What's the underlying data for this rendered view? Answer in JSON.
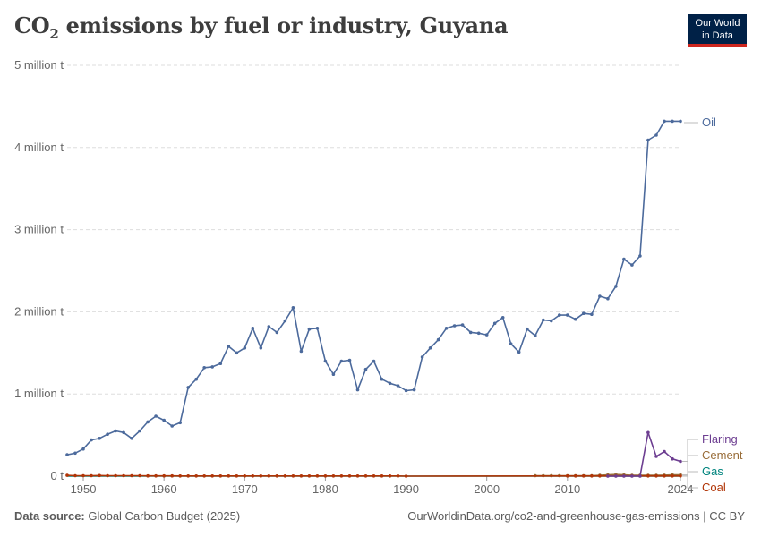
{
  "title_main": "CO",
  "title_sub": "2",
  "title_rest": " emissions by fuel or industry, Guyana",
  "logo": {
    "line1": "Our World",
    "line2": "in Data"
  },
  "footer": {
    "source_label": "Data source:",
    "source_text": " Global Carbon Budget (2025)",
    "right_text": "OurWorldinData.org/co2-and-greenhouse-gas-emissions | CC BY"
  },
  "colors": {
    "oil": "#4c6a9c",
    "flaring": "#6d3e91",
    "cement": "#996d39",
    "gas": "#00847e",
    "coal": "#b13507",
    "grid": "#dddddd",
    "axis": "#999999"
  },
  "chart_data": {
    "type": "line",
    "title": "CO₂ emissions by fuel or industry, Guyana",
    "y_ticks": [
      0,
      1000000,
      2000000,
      3000000,
      4000000,
      5000000
    ],
    "y_tick_labels": [
      "0 t",
      "1 million t",
      "2 million t",
      "3 million t",
      "4 million t",
      "5 million t"
    ],
    "x_ticks": [
      1950,
      1960,
      1970,
      1980,
      1990,
      2000,
      2010,
      2024
    ],
    "x_tick_labels": [
      "1950",
      "1960",
      "1970",
      "1980",
      "1990",
      "2000",
      "2010",
      "2024"
    ],
    "xlim": [
      1948,
      2024
    ],
    "ylim": [
      0,
      5000000
    ],
    "grid": true,
    "legend_placement": "right",
    "series": [
      {
        "name": "Oil",
        "key": "oil",
        "x": [
          1948,
          1949,
          1950,
          1951,
          1952,
          1953,
          1954,
          1955,
          1956,
          1957,
          1958,
          1959,
          1960,
          1961,
          1962,
          1963,
          1964,
          1965,
          1966,
          1967,
          1968,
          1969,
          1970,
          1971,
          1972,
          1973,
          1974,
          1975,
          1976,
          1977,
          1978,
          1979,
          1980,
          1981,
          1982,
          1983,
          1984,
          1985,
          1986,
          1987,
          1988,
          1989,
          1990,
          1991,
          1992,
          1993,
          1994,
          1995,
          1996,
          1997,
          1998,
          1999,
          2000,
          2001,
          2002,
          2003,
          2004,
          2005,
          2006,
          2007,
          2008,
          2009,
          2010,
          2011,
          2012,
          2013,
          2014,
          2015,
          2016,
          2017,
          2018,
          2019,
          2020,
          2021,
          2022,
          2023,
          2024
        ],
        "values": [
          260000,
          280000,
          330000,
          440000,
          460000,
          510000,
          550000,
          530000,
          460000,
          550000,
          660000,
          730000,
          680000,
          610000,
          650000,
          1080000,
          1180000,
          1320000,
          1330000,
          1370000,
          1580000,
          1500000,
          1560000,
          1800000,
          1560000,
          1820000,
          1750000,
          1890000,
          2050000,
          1520000,
          1790000,
          1800000,
          1400000,
          1240000,
          1400000,
          1410000,
          1050000,
          1300000,
          1400000,
          1180000,
          1130000,
          1100000,
          1040000,
          1050000,
          1450000,
          1560000,
          1660000,
          1800000,
          1830000,
          1840000,
          1750000,
          1740000,
          1720000,
          1860000,
          1930000,
          1610000,
          1510000,
          1790000,
          1710000,
          1900000,
          1890000,
          1960000,
          1960000,
          1910000,
          1980000,
          1970000,
          2190000,
          2160000,
          2310000,
          2640000,
          2570000,
          2680000,
          4090000,
          4150000,
          4320000,
          4320000,
          4320000
        ]
      },
      {
        "name": "Flaring",
        "key": "flaring",
        "x": [
          2015,
          2016,
          2017,
          2018,
          2019,
          2020,
          2021,
          2022,
          2023,
          2024
        ],
        "values": [
          0,
          0,
          0,
          0,
          0,
          530000,
          240000,
          300000,
          210000,
          180000
        ]
      },
      {
        "name": "Cement",
        "key": "cement",
        "x": [
          2006,
          2007,
          2008,
          2009,
          2010,
          2011,
          2012,
          2013,
          2014,
          2015,
          2016,
          2017,
          2018,
          2019,
          2020,
          2021,
          2022,
          2023,
          2024
        ],
        "values": [
          5000,
          5000,
          5000,
          5000,
          5000,
          5000,
          5000,
          5000,
          10000,
          15000,
          20000,
          15000,
          10000,
          10000,
          10000,
          10000,
          12000,
          15000,
          15000
        ]
      },
      {
        "name": "Gas",
        "key": "gas",
        "x": [
          1948,
          2024
        ],
        "values": [
          0,
          0
        ]
      },
      {
        "name": "Coal",
        "key": "coal",
        "x": [
          1948,
          1949,
          1950,
          1951,
          1952,
          1953,
          1954,
          1955,
          1956,
          1957,
          1958,
          1959,
          1960,
          1961,
          1962,
          1963,
          1964,
          1965,
          1966,
          1967,
          1968,
          1969,
          1970,
          1971,
          1972,
          1973,
          1974,
          1975,
          1976,
          1977,
          1978,
          1979,
          1980,
          1981,
          1982,
          1983,
          1984,
          1985,
          1986,
          1987,
          1988,
          1989,
          1990,
          2010,
          2011,
          2012,
          2013,
          2014,
          2015,
          2016,
          2017,
          2018,
          2019,
          2020,
          2021,
          2022,
          2023,
          2024
        ],
        "values": [
          10000,
          5000,
          5000,
          5000,
          8000,
          5000,
          5000,
          5000,
          5000,
          5000,
          3000,
          3000,
          3000,
          3000,
          2000,
          2000,
          2000,
          2000,
          2000,
          2000,
          2000,
          2000,
          2000,
          2000,
          2000,
          2000,
          2000,
          2000,
          2000,
          2000,
          2000,
          2000,
          2000,
          2000,
          2000,
          2000,
          2000,
          2000,
          2000,
          2000,
          2000,
          2000,
          0,
          2000,
          2000,
          2000,
          2000,
          2000,
          2000,
          2000,
          2000,
          2000,
          2000,
          2000,
          2000,
          2000,
          2000,
          2000
        ]
      }
    ]
  }
}
